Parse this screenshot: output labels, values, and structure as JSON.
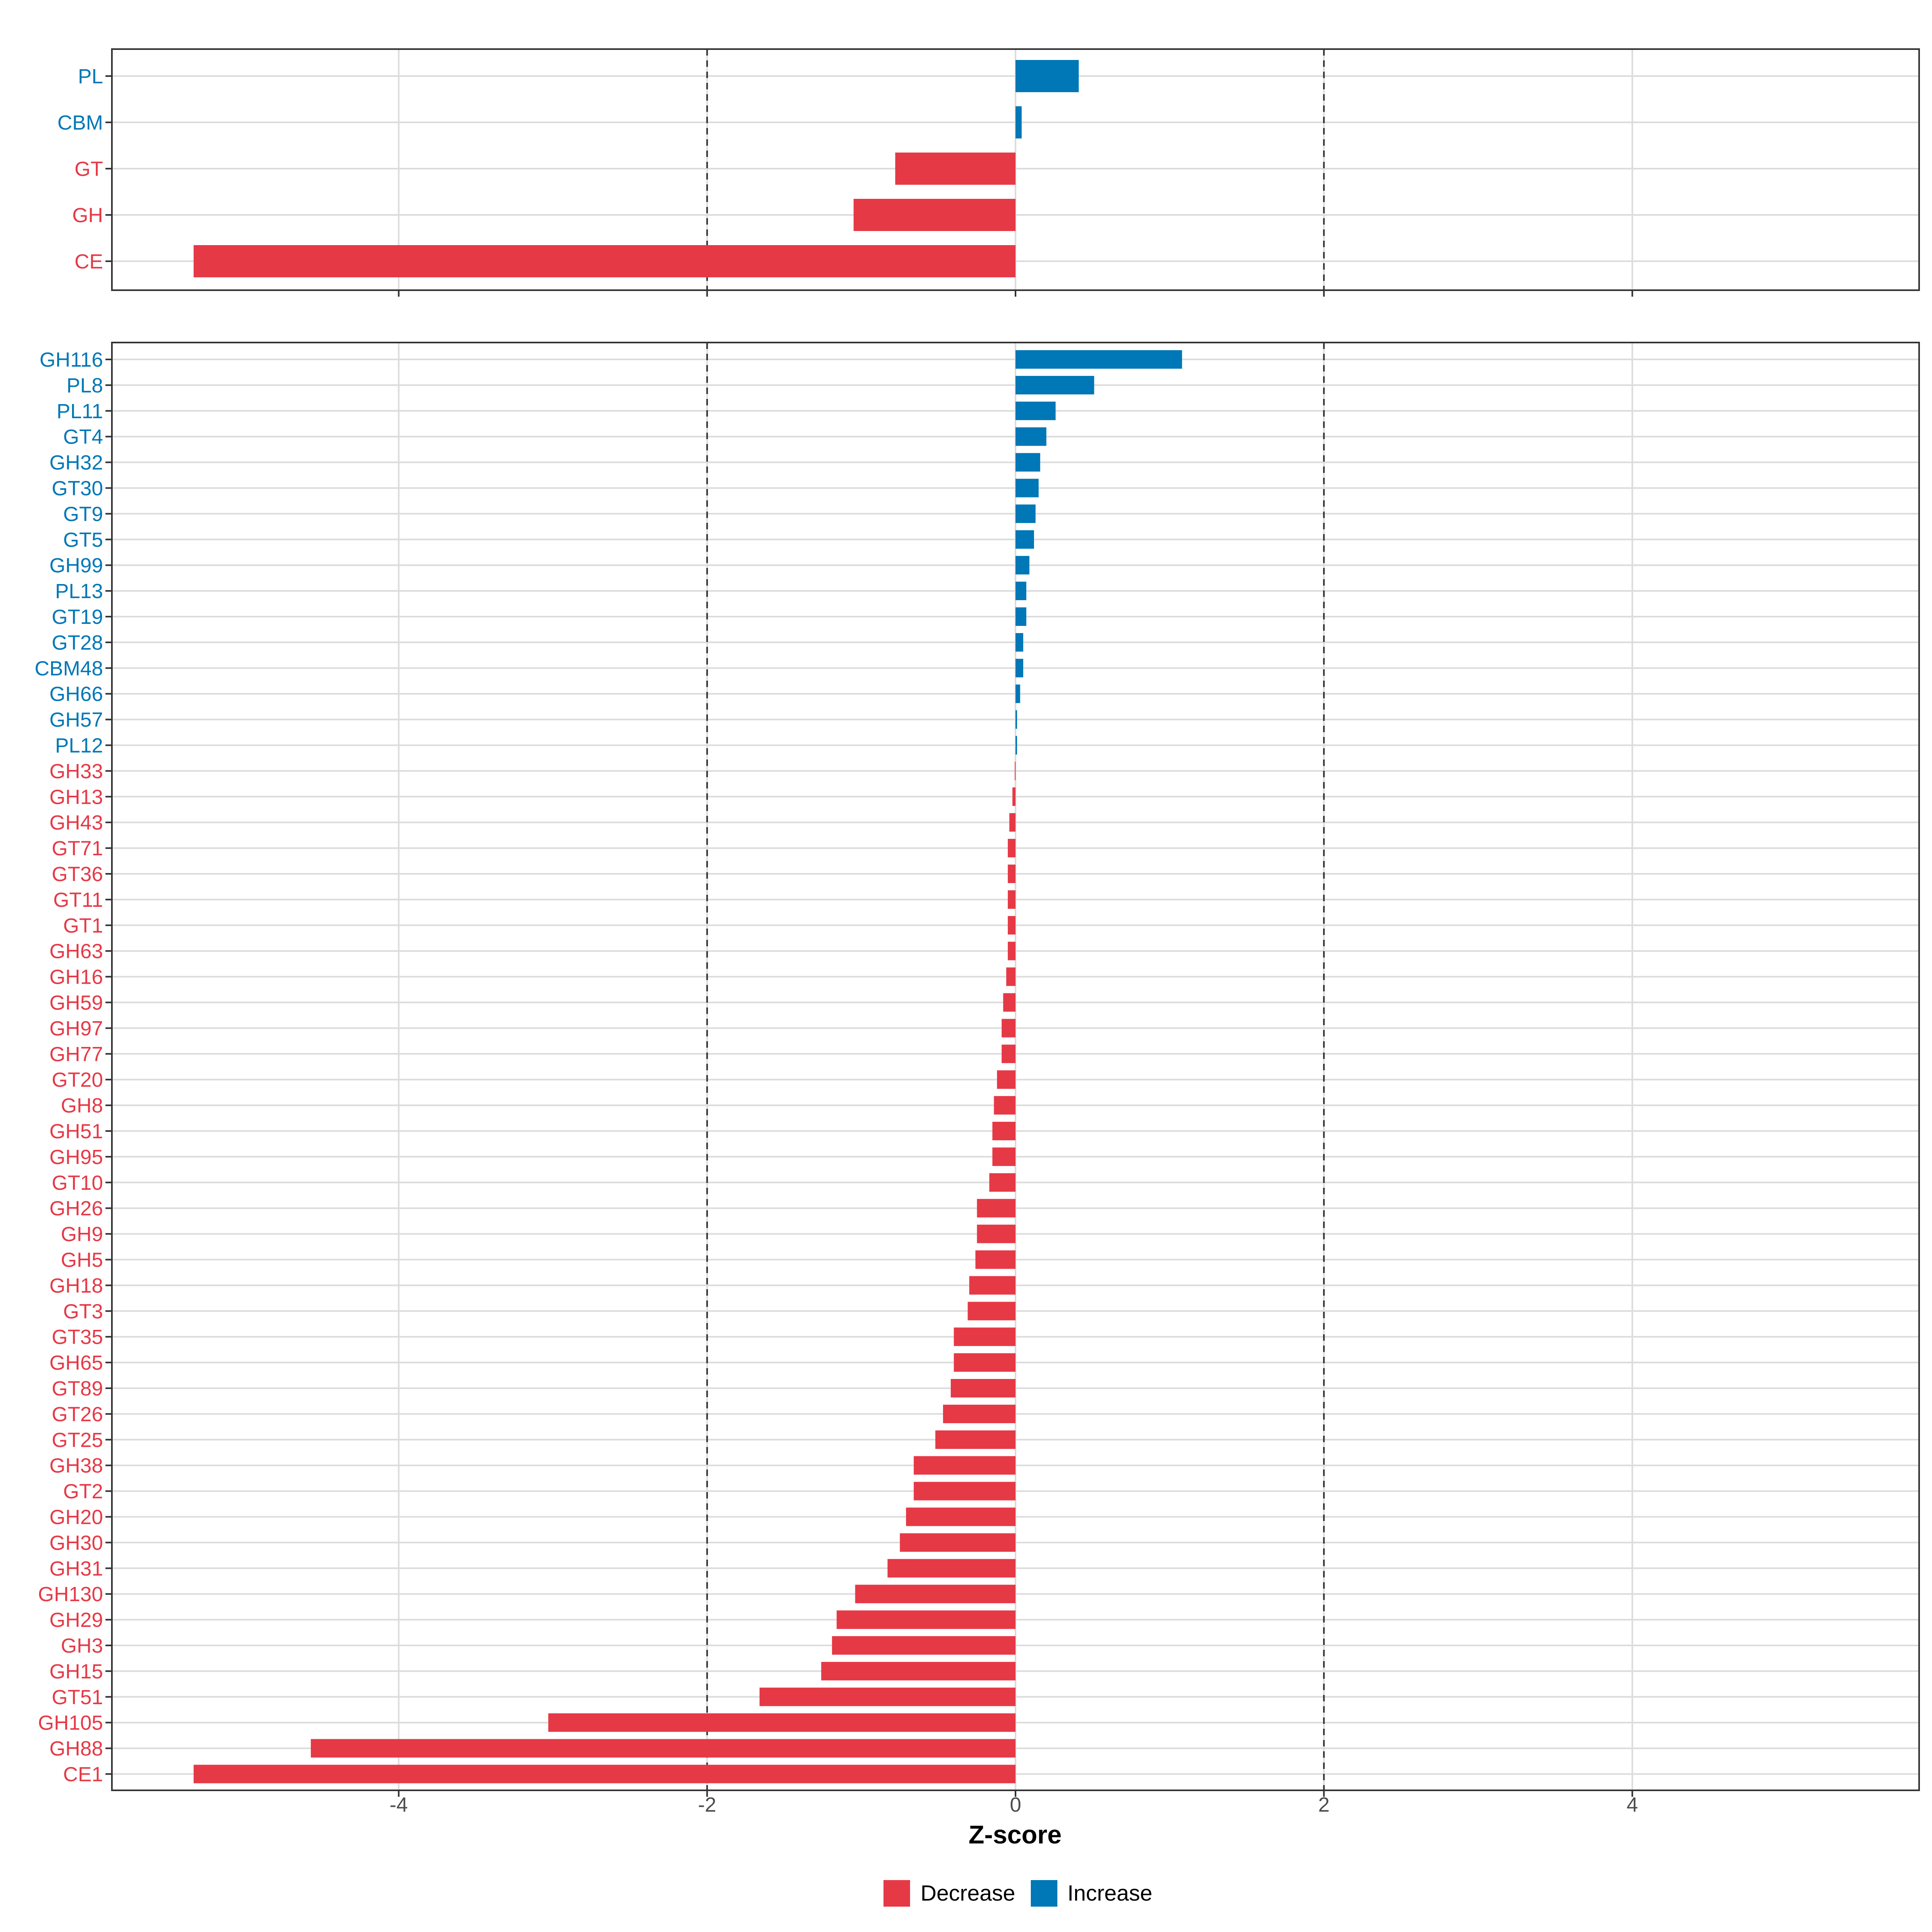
{
  "chart_data": [
    {
      "type": "bar",
      "orientation": "horizontal",
      "panel": "top",
      "categories": [
        "PL",
        "CBM",
        "GT",
        "GH",
        "CE"
      ],
      "values": [
        0.41,
        0.04,
        -0.78,
        -1.05,
        -5.33
      ],
      "directions": [
        "Increase",
        "Increase",
        "Decrease",
        "Decrease",
        "Decrease"
      ],
      "xlim": [
        -5.86,
        5.86
      ],
      "xticks": [
        -4,
        -2,
        0,
        2,
        4
      ],
      "reference_lines": [
        -2,
        2
      ],
      "grid": true
    },
    {
      "type": "bar",
      "orientation": "horizontal",
      "panel": "bottom",
      "categories": [
        "GH116",
        "PL8",
        "PL11",
        "GT4",
        "GH32",
        "GT30",
        "GT9",
        "GT5",
        "GH99",
        "PL13",
        "GT19",
        "GT28",
        "CBM48",
        "GH66",
        "GH57",
        "PL12",
        "GH33",
        "GH13",
        "GH43",
        "GT71",
        "GT36",
        "GT11",
        "GT1",
        "GH63",
        "GH16",
        "GH59",
        "GH97",
        "GH77",
        "GT20",
        "GH8",
        "GH51",
        "GH95",
        "GT10",
        "GH26",
        "GH9",
        "GH5",
        "GH18",
        "GT3",
        "GT35",
        "GH65",
        "GT89",
        "GT26",
        "GT25",
        "GH38",
        "GT2",
        "GH20",
        "GH30",
        "GH31",
        "GH130",
        "GH29",
        "GH3",
        "GH15",
        "GT51",
        "GH105",
        "GH88",
        "CE1"
      ],
      "values": [
        1.08,
        0.51,
        0.26,
        0.2,
        0.16,
        0.15,
        0.13,
        0.12,
        0.09,
        0.07,
        0.07,
        0.05,
        0.05,
        0.03,
        0.01,
        0.01,
        -0.005,
        -0.02,
        -0.04,
        -0.05,
        -0.05,
        -0.05,
        -0.05,
        -0.05,
        -0.06,
        -0.08,
        -0.09,
        -0.09,
        -0.12,
        -0.14,
        -0.15,
        -0.15,
        -0.17,
        -0.25,
        -0.25,
        -0.26,
        -0.3,
        -0.31,
        -0.4,
        -0.4,
        -0.42,
        -0.47,
        -0.52,
        -0.66,
        -0.66,
        -0.71,
        -0.75,
        -0.83,
        -1.04,
        -1.16,
        -1.19,
        -1.26,
        -1.66,
        -3.03,
        -4.57,
        -5.33
      ],
      "positive_direction": "Increase",
      "negative_direction": "Decrease",
      "xlim": [
        -5.86,
        5.86
      ],
      "xticks": [
        -4,
        -2,
        0,
        2,
        4
      ],
      "reference_lines": [
        -2,
        2
      ],
      "grid": true,
      "xlabel": "Z-score"
    }
  ],
  "legend": {
    "position": "bottom",
    "items": [
      {
        "label": "Decrease",
        "color": "#E63946"
      },
      {
        "label": "Increase",
        "color": "#0077B6"
      }
    ]
  },
  "colors": {
    "increase": "#0077B6",
    "decrease": "#E63946",
    "grid": "#DCDCDC",
    "panel_border": "#333333",
    "reference_line": "#333333"
  }
}
